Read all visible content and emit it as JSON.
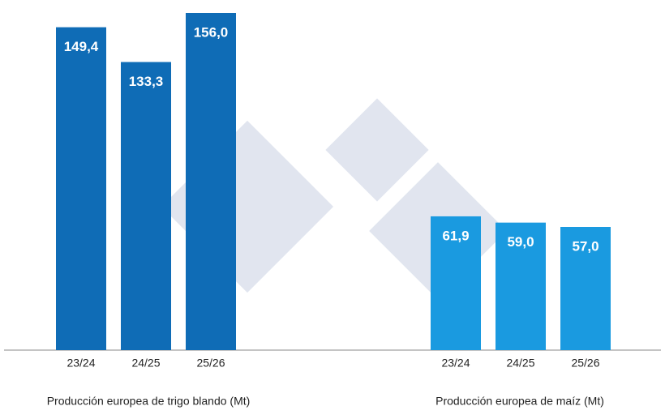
{
  "chart_data": [
    {
      "type": "bar",
      "title": "Producción europea de trigo blando (Mt)",
      "categories": [
        "23/24",
        "24/25",
        "25/26"
      ],
      "values": [
        149.4,
        133.3,
        156.0
      ],
      "value_labels": [
        "149,4",
        "133,3",
        "156,0"
      ],
      "color": "#0f6cb6",
      "ylim": [
        0,
        162
      ]
    },
    {
      "type": "bar",
      "title": "Producción europea de maíz (Mt)",
      "categories": [
        "23/24",
        "24/25",
        "25/26"
      ],
      "values": [
        61.9,
        59.0,
        57.0
      ],
      "value_labels": [
        "61,9",
        "59,0",
        "57,0"
      ],
      "color": "#1a9ae0",
      "ylim": [
        0,
        162
      ]
    }
  ]
}
